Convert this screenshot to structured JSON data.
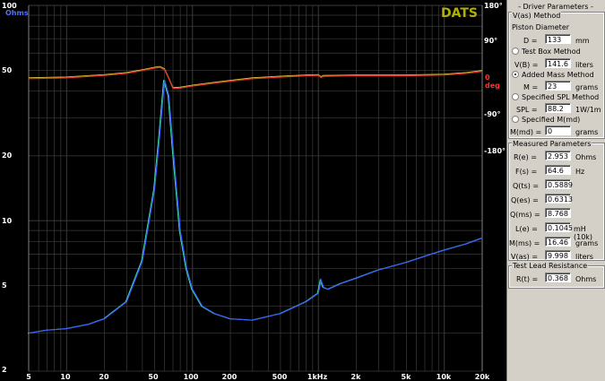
{
  "plot": {
    "brand": "DATS",
    "left_unit": "Ohms",
    "phase_zero_label": "0 deg",
    "left_ticks": [
      "100",
      "50",
      "20",
      "10",
      "5",
      "2"
    ],
    "right_ticks": [
      "180°",
      "90°",
      "-90°",
      "-180°"
    ],
    "x_ticks": [
      "5",
      "10",
      "20",
      "50",
      "100",
      "200",
      "500",
      "1kHz",
      "2k",
      "5k",
      "10k",
      "20k"
    ],
    "colors": {
      "impedance": "#3a5cff",
      "impedance_fit": "#40e0a0",
      "phase": "#e03020",
      "phase_fit": "#d0c040",
      "grid": "#3c3c3c"
    }
  },
  "chart_data": {
    "type": "line",
    "x_scale": "log",
    "xlim": [
      5,
      20000
    ],
    "ylim_left": [
      2,
      100
    ],
    "y_scale_left": "log",
    "ylim_right": [
      -180,
      180
    ],
    "series": [
      {
        "axis": "left",
        "x": [
          5,
          7,
          10,
          15,
          20,
          30,
          40,
          50,
          55,
          60,
          65,
          70,
          80,
          90,
          100,
          120,
          150,
          200,
          300,
          500,
          800,
          1000,
          1050,
          1100,
          1200,
          1500,
          2000,
          3000,
          5000,
          8000,
          10000,
          15000,
          20000
        ],
        "y": [
          3.0,
          3.1,
          3.15,
          3.3,
          3.5,
          4.2,
          6.5,
          14,
          25,
          45,
          38,
          22,
          9,
          6,
          4.8,
          4.0,
          3.7,
          3.5,
          3.45,
          3.7,
          4.2,
          4.6,
          5.3,
          4.9,
          4.8,
          5.1,
          5.4,
          5.9,
          6.4,
          7.0,
          7.3,
          7.8,
          8.3
        ]
      },
      {
        "axis": "right",
        "x": [
          5,
          10,
          20,
          30,
          40,
          50,
          55,
          60,
          65,
          70,
          80,
          100,
          150,
          200,
          300,
          500,
          800,
          1000,
          1050,
          1100,
          2000,
          5000,
          10000,
          15000,
          20000
        ],
        "y": [
          -4,
          -2,
          4,
          9,
          16,
          22,
          24,
          18,
          -5,
          -28,
          -27,
          -22,
          -15,
          -10,
          -4,
          0,
          3,
          4,
          -1,
          2,
          3,
          3,
          5,
          9,
          14
        ]
      }
    ]
  },
  "panel": {
    "title": "- Driver Parameters -",
    "vas_method": {
      "legend": "V(as) Method",
      "piston_label": "Piston Diameter",
      "d_label": "D =",
      "d_value": "133",
      "d_unit": "mm",
      "testbox_label": "Test Box Method",
      "vb_label": "V(B) =",
      "vb_value": "141.6",
      "vb_unit": "liters",
      "addedmass_label": "Added Mass Method",
      "m_label": "M =",
      "m_value": "23",
      "m_unit": "grams",
      "spl_label": "Specified SPL Method",
      "spl_field_label": "SPL =",
      "spl_value": "88.2",
      "spl_unit": "1W/1m",
      "mmd_radio_label": "Specified M(md)",
      "mmd_label": "M(md) =",
      "mmd_value": "0",
      "mmd_unit": "grams",
      "selected": "addedmass"
    },
    "measured": {
      "legend": "Measured Parameters",
      "rows": [
        {
          "label": "R(e) =",
          "value": "2.953",
          "unit": "Ohms"
        },
        {
          "label": "F(s) =",
          "value": "64.6",
          "unit": "Hz"
        },
        {
          "label": "Q(ts) =",
          "value": "0.5889",
          "unit": ""
        },
        {
          "label": "Q(es) =",
          "value": "0.6313",
          "unit": ""
        },
        {
          "label": "Q(ms) =",
          "value": "8.768",
          "unit": ""
        },
        {
          "label": "L(e) =",
          "value": "0.1045",
          "unit": "mH (10k)"
        },
        {
          "label": "M(ms) =",
          "value": "16.46",
          "unit": "grams"
        },
        {
          "label": "V(as) =",
          "value": "9.998",
          "unit": "liters"
        }
      ]
    },
    "lead": {
      "legend": "Test Lead Resistance",
      "label": "R(t) =",
      "value": "0.368",
      "unit": "Ohms"
    }
  }
}
